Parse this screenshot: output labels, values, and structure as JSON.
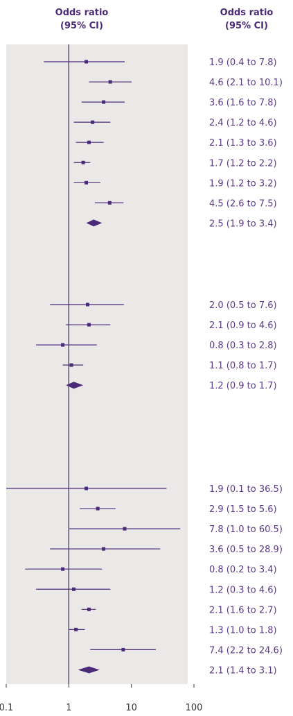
{
  "chart_data": {
    "type": "forest",
    "x_scale": "log",
    "xlim": [
      0.1,
      100
    ],
    "x_ticks": [
      "0.1",
      "1",
      "10",
      "100"
    ],
    "reference_line": 1,
    "headers": {
      "plot": [
        "Odds ratio",
        "(95% CI)"
      ],
      "labels": [
        "Odds ratio",
        "(95% CI)"
      ]
    },
    "colors": {
      "panel": "#ebe9e7",
      "marks": "#4b2a78",
      "text": "#5a3a86"
    },
    "groups": [
      {
        "studies": [
          {
            "or": 1.9,
            "lo": 0.4,
            "hi": 7.8,
            "label": "1.9 (0.4 to 7.8)"
          },
          {
            "or": 4.6,
            "lo": 2.1,
            "hi": 10.1,
            "label": "4.6 (2.1 to 10.1)"
          },
          {
            "or": 3.6,
            "lo": 1.6,
            "hi": 7.8,
            "label": "3.6 (1.6 to 7.8)"
          },
          {
            "or": 2.4,
            "lo": 1.2,
            "hi": 4.6,
            "label": "2.4 (1.2 to 4.6)"
          },
          {
            "or": 2.1,
            "lo": 1.3,
            "hi": 3.6,
            "label": "2.1 (1.3 to 3.6)"
          },
          {
            "or": 1.7,
            "lo": 1.2,
            "hi": 2.2,
            "label": "1.7 (1.2 to 2.2)"
          },
          {
            "or": 1.9,
            "lo": 1.2,
            "hi": 3.2,
            "label": "1.9 (1.2 to 3.2)"
          },
          {
            "or": 4.5,
            "lo": 2.6,
            "hi": 7.5,
            "label": "4.5 (2.6 to 7.5)"
          }
        ],
        "pooled": {
          "or": 2.5,
          "lo": 1.9,
          "hi": 3.4,
          "label": "2.5 (1.9 to 3.4)"
        }
      },
      {
        "studies": [
          {
            "or": 2.0,
            "lo": 0.5,
            "hi": 7.6,
            "label": "2.0 (0.5 to 7.6)"
          },
          {
            "or": 2.1,
            "lo": 0.9,
            "hi": 4.6,
            "label": "2.1 (0.9 to 4.6)"
          },
          {
            "or": 0.8,
            "lo": 0.3,
            "hi": 2.8,
            "label": "0.8 (0.3 to 2.8)"
          },
          {
            "or": 1.1,
            "lo": 0.8,
            "hi": 1.7,
            "label": "1.1 (0.8 to 1.7)"
          }
        ],
        "pooled": {
          "or": 1.2,
          "lo": 0.9,
          "hi": 1.7,
          "label": "1.2 (0.9 to 1.7)"
        }
      },
      {
        "studies": [
          {
            "or": 1.9,
            "lo": 0.1,
            "hi": 36.5,
            "label": "1.9 (0.1 to 36.5)"
          },
          {
            "or": 2.9,
            "lo": 1.5,
            "hi": 5.6,
            "label": "2.9 (1.5 to 5.6)"
          },
          {
            "or": 7.8,
            "lo": 1.0,
            "hi": 60.5,
            "label": "7.8 (1.0 to 60.5)"
          },
          {
            "or": 3.6,
            "lo": 0.5,
            "hi": 28.9,
            "label": "3.6 (0.5 to 28.9)"
          },
          {
            "or": 0.8,
            "lo": 0.2,
            "hi": 3.4,
            "label": "0.8 (0.2 to 3.4)"
          },
          {
            "or": 1.2,
            "lo": 0.3,
            "hi": 4.6,
            "label": "1.2 (0.3 to 4.6)"
          },
          {
            "or": 2.1,
            "lo": 1.6,
            "hi": 2.7,
            "label": "2.1 (1.6 to 2.7)"
          },
          {
            "or": 1.3,
            "lo": 1.0,
            "hi": 1.8,
            "label": "1.3 (1.0 to 1.8)"
          },
          {
            "or": 7.4,
            "lo": 2.2,
            "hi": 24.6,
            "label": "7.4 (2.2 to 24.6)"
          }
        ],
        "pooled": {
          "or": 2.1,
          "lo": 1.4,
          "hi": 3.1,
          "label": "2.1 (1.4 to 3.1)"
        }
      }
    ]
  }
}
